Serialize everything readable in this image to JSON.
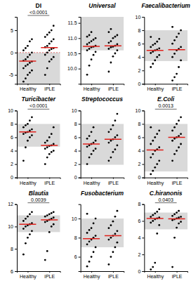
{
  "chart_data": [
    {
      "type": "scatter",
      "title": "DI",
      "categories": [
        "Healthy",
        "iPLE"
      ],
      "color": "#000000",
      "values": [
        [
          -6.5,
          -5.8,
          -5,
          -4.5,
          -4,
          -3.5,
          -3,
          -2.7,
          -2.3,
          -2,
          -1.8,
          -1.5,
          -1,
          -0.5,
          0,
          0.5,
          1,
          1.5,
          2.5,
          3
        ],
        [
          -5,
          -3.5,
          -2,
          -1.5,
          -1,
          -0.5,
          0,
          0.5,
          0.8,
          1,
          1.2,
          1.5,
          2,
          2.5,
          3,
          3.5,
          4,
          4.5,
          5,
          6
        ]
      ],
      "medians": [
        -1.9,
        1.1
      ],
      "reference_range": [
        -7,
        0
      ],
      "p_value": "<0.0001",
      "ylim": [
        -7,
        8
      ],
      "yticks": [
        -5,
        0,
        5
      ]
    },
    {
      "type": "scatter",
      "title": "Universal",
      "categories": [
        "Healthy",
        "iPLE"
      ],
      "color": "#000000",
      "values": [
        [
          9.8,
          10.1,
          10.3,
          10.45,
          10.55,
          10.6,
          10.65,
          10.7,
          10.72,
          10.75,
          10.8,
          10.85,
          10.9,
          10.95,
          11.0,
          11.05,
          11.1,
          11.2
        ],
        [
          9.9,
          10.2,
          10.4,
          10.5,
          10.6,
          10.65,
          10.7,
          10.72,
          10.75,
          10.8,
          10.85,
          10.9,
          11.0,
          11.05,
          11.1,
          11.2,
          11.3
        ]
      ],
      "medians": [
        10.73,
        10.75
      ],
      "reference_range": [
        10.6,
        11.7
      ],
      "ylim": [
        9.5,
        11.7
      ],
      "yticks": [
        {
          "value": 10,
          "label": "10.0"
        },
        10.5,
        {
          "value": 11,
          "label": "11.0"
        },
        11.5
      ]
    },
    {
      "type": "scatter",
      "title": "Faecalibacterium",
      "categories": [
        "Healthy",
        "iPLE"
      ],
      "color": "#000000",
      "values": [
        [
          2.5,
          3,
          3.5,
          4,
          4.3,
          4.6,
          4.8,
          5,
          5.1,
          5.3,
          5.5,
          5.8,
          6,
          6.3,
          6.7,
          7
        ],
        [
          0.5,
          1,
          1.5,
          2.5,
          3.5,
          4,
          4.5,
          5,
          5.2,
          5.5,
          6,
          6.5,
          7,
          7.5,
          8,
          8.5
        ]
      ],
      "medians": [
        5,
        5.1
      ],
      "reference_range": [
        3.4,
        8
      ],
      "ylim": [
        0,
        10
      ],
      "yticks": [
        0,
        2,
        4,
        6,
        8,
        10
      ]
    },
    {
      "type": "scatter",
      "title": "Turicibacter",
      "categories": [
        "Healthy",
        "iPLE"
      ],
      "color": "#000000",
      "values": [
        [
          2.5,
          4.5,
          5.5,
          6,
          6.3,
          6.5,
          6.7,
          6.8,
          7,
          7.2,
          7.5,
          7.8,
          8,
          8.5,
          9
        ],
        [
          2,
          3,
          3.5,
          3.8,
          4,
          4.3,
          4.5,
          4.7,
          4.8,
          5,
          5.2,
          5.5,
          6,
          6.5,
          7.5
        ]
      ],
      "medians": [
        6.8,
        4.8
      ],
      "reference_range": [
        4.6,
        8
      ],
      "p_value": "<0.0001",
      "ylim": [
        0,
        10
      ],
      "yticks": [
        0,
        2,
        4,
        6,
        8,
        10
      ]
    },
    {
      "type": "scatter",
      "title": "Streptococcus",
      "categories": [
        "Healthy",
        "iPLE"
      ],
      "color": "#000000",
      "values": [
        [
          2,
          3,
          3.5,
          4,
          4.3,
          4.6,
          4.8,
          5,
          5.2,
          5.5,
          5.8,
          6.2,
          6.8,
          7.5
        ],
        [
          2.5,
          3,
          3.8,
          4.2,
          4.8,
          5.2,
          5.5,
          5.7,
          6,
          6.3,
          6.8,
          7.2,
          7.8,
          8.5,
          9.5
        ]
      ],
      "medians": [
        5,
        5.7
      ],
      "reference_range": [
        1.9,
        8
      ],
      "ylim": [
        0,
        10
      ],
      "yticks": [
        0,
        2,
        4,
        6,
        8,
        10
      ]
    },
    {
      "type": "scatter",
      "title": "E.Coli",
      "categories": [
        "Healthy",
        "iPLE"
      ],
      "color": "#000000",
      "values": [
        [
          0.5,
          1,
          1.5,
          2,
          2.5,
          3,
          3.5,
          4,
          4.2,
          4.5,
          5,
          5.5,
          6,
          6.5,
          7,
          7.5
        ],
        [
          2.5,
          3.5,
          4,
          4.5,
          5,
          5.5,
          5.8,
          6,
          6.2,
          6.5,
          7,
          7.5,
          8,
          8.5,
          9
        ]
      ],
      "medians": [
        4.1,
        6
      ],
      "reference_range": [
        0.9,
        8
      ],
      "p_value": "0.0013",
      "ylim": [
        0,
        10
      ],
      "yticks": [
        0,
        2,
        4,
        6,
        8,
        10
      ]
    },
    {
      "type": "scatter",
      "title": "Blautia",
      "categories": [
        "Healthy",
        "iPLE"
      ],
      "color": "#000000",
      "values": [
        [
          7.5,
          8.5,
          9,
          9.3,
          9.6,
          9.8,
          10,
          10.1,
          10.2,
          10.3,
          10.5,
          10.7,
          10.9,
          11.1,
          11.3
        ],
        [
          7,
          7.8,
          9.5,
          10,
          10.2,
          10.4,
          10.5,
          10.6,
          10.7,
          10.8,
          10.9,
          11,
          11.1,
          11.2,
          11.3
        ]
      ],
      "medians": [
        10.2,
        10.6
      ],
      "reference_range": [
        9.5,
        11
      ],
      "p_value": "0.0039",
      "ylim": [
        6,
        12
      ],
      "yticks": [
        6,
        8,
        10,
        12
      ]
    },
    {
      "type": "scatter",
      "title": "Fusobacterium",
      "categories": [
        "Healthy",
        "iPLE"
      ],
      "color": "#000000",
      "values": [
        [
          5,
          5.5,
          6,
          6.5,
          7,
          7.3,
          7.6,
          7.8,
          8,
          8.2,
          8.5,
          8.8,
          9,
          9.5,
          10,
          10.5
        ],
        [
          5.2,
          6,
          6.5,
          7,
          7.5,
          7.8,
          8,
          8.2,
          8.4,
          8.7,
          9,
          9.3,
          9.7,
          10.2,
          10.8
        ]
      ],
      "medians": [
        7.9,
        8.2
      ],
      "reference_range": [
        7,
        10
      ],
      "ylim": [
        4.5,
        11.5
      ],
      "yticks": [
        6,
        8,
        10
      ]
    },
    {
      "type": "scatter",
      "title": "C.hiranonis",
      "categories": [
        "Healthy",
        "iPLE"
      ],
      "color": "#000000",
      "values": [
        [
          0.2,
          0.5,
          1,
          4.5,
          5.5,
          5.8,
          6,
          6.2,
          6.3,
          6.4,
          6.5,
          6.7,
          6.9,
          7.1,
          7.4
        ],
        [
          0.5,
          4,
          5.2,
          5.7,
          5.9,
          6.1,
          6.2,
          6.3,
          6.4,
          6.5,
          6.6,
          6.8,
          7,
          7.2
        ]
      ],
      "medians": [
        6.3,
        6.25
      ],
      "reference_range": [
        5,
        7
      ],
      "p_value": "0.0403",
      "ylim": [
        0,
        8
      ],
      "yticks": [
        0,
        2,
        4,
        6,
        8
      ]
    }
  ]
}
